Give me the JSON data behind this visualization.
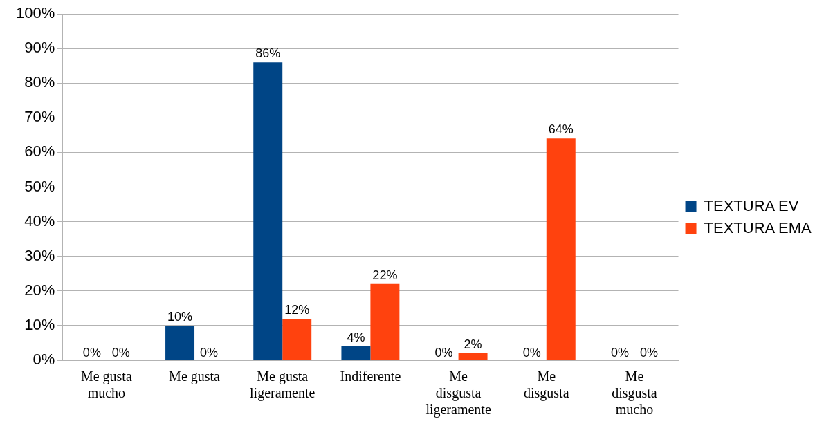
{
  "chart_data": {
    "type": "bar",
    "categories": [
      "Me gusta mucho",
      "Me gusta",
      "Me gusta ligeramente",
      "Indiferente",
      "Me disgusta ligeramente",
      "Me disgusta",
      "Me disgusta mucho"
    ],
    "series": [
      {
        "name": "TEXTURA EV",
        "color": "#004586",
        "values": [
          0,
          10,
          86,
          4,
          0,
          0,
          0
        ],
        "value_labels": [
          "0%",
          "10%",
          "86%",
          "4%",
          "0%",
          "0%",
          "0%"
        ]
      },
      {
        "name": "TEXTURA EMA",
        "color": "#ff420e",
        "values": [
          0,
          0,
          12,
          22,
          2,
          64,
          0
        ],
        "value_labels": [
          "0%",
          "0%",
          "12%",
          "22%",
          "2%",
          "64%",
          "0%"
        ]
      }
    ],
    "ylim": [
      0,
      100
    ],
    "yticks": [
      {
        "value": 0,
        "label": "0%"
      },
      {
        "value": 10,
        "label": "10%"
      },
      {
        "value": 20,
        "label": "20%"
      },
      {
        "value": 30,
        "label": "30%"
      },
      {
        "value": 40,
        "label": "40%"
      },
      {
        "value": 50,
        "label": "50%"
      },
      {
        "value": 60,
        "label": "60%"
      },
      {
        "value": 70,
        "label": "70%"
      },
      {
        "value": 80,
        "label": "80%"
      },
      {
        "value": 90,
        "label": "90%"
      },
      {
        "value": 100,
        "label": "100%"
      }
    ],
    "grid": "y",
    "legend": "right"
  }
}
